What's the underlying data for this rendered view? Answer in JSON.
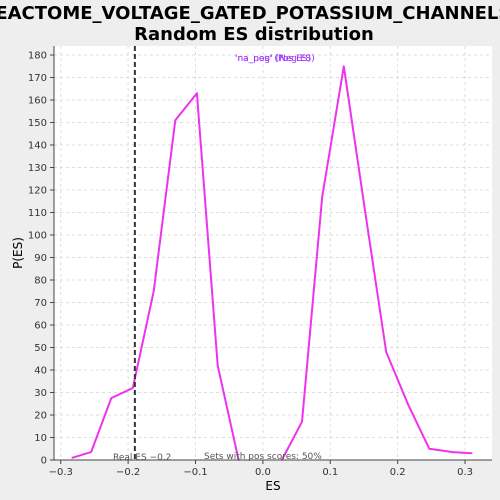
{
  "chart_data": {
    "type": "line",
    "title": "REACTOME_VOLTAGE_GATED_POTASSIUM_CHANNELS:",
    "subtitle": "Random ES distribution",
    "xlabel": "ES",
    "ylabel": "P(ES)",
    "xlim": [
      -0.31,
      0.34
    ],
    "ylim": [
      0,
      184
    ],
    "x_ticks": [
      -0.3,
      -0.2,
      -0.1,
      0.0,
      0.1,
      0.2,
      0.3
    ],
    "x_tick_labels": [
      "−0.3",
      "−0.2",
      "−0.1",
      "0.0",
      "0.1",
      "0.2",
      "0.3"
    ],
    "y_ticks": [
      0,
      10,
      20,
      30,
      40,
      50,
      60,
      70,
      80,
      90,
      100,
      110,
      120,
      130,
      140,
      150,
      160,
      170,
      180
    ],
    "grid": true,
    "series": [
      {
        "name": "'na_neg' (Neg ES)",
        "color": "#ee33ee",
        "x": [
          -0.283,
          -0.255,
          -0.225,
          -0.193,
          -0.162,
          -0.13,
          -0.098,
          -0.067,
          -0.036
        ],
        "y": [
          1,
          3.5,
          27.5,
          32,
          75,
          151,
          163,
          42,
          0
        ]
      },
      {
        "name": "'na_pos' (Pos ES)",
        "color": "#ee33ee",
        "x": [
          0.028,
          0.058,
          0.088,
          0.12,
          0.152,
          0.183,
          0.215,
          0.247,
          0.282,
          0.31
        ],
        "y": [
          0,
          17,
          117,
          175,
          110,
          48,
          25,
          5,
          3.5,
          3
        ]
      }
    ],
    "legend": {
      "position": "top-center",
      "labels": [
        "'na_neg' (Neg ES)",
        "'na_pos' (Pos ES)"
      ],
      "color": "#9b30ff"
    },
    "real_es": {
      "value": -0.19,
      "label": "Real ES −0.2",
      "line_color": "#333333"
    },
    "annotation": "Sets with pos scores: 50%"
  }
}
